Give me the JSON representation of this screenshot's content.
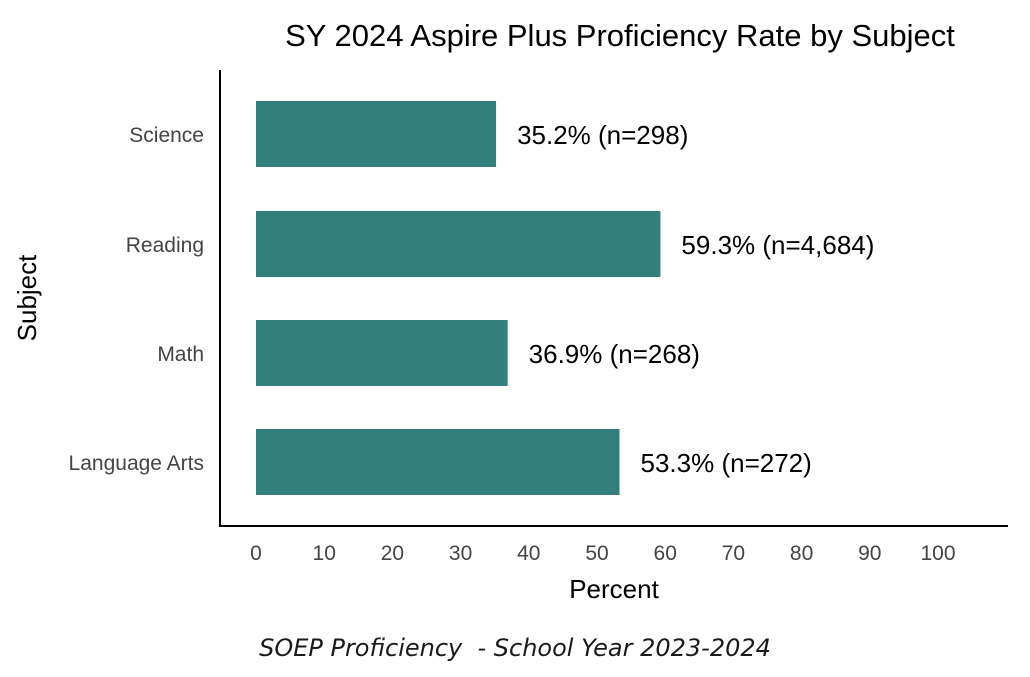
{
  "chart_data": {
    "type": "bar",
    "orientation": "horizontal",
    "title": "SY 2024 Aspire Plus Proficiency Rate by Subject",
    "xlabel": "Percent",
    "ylabel": "Subject",
    "categories": [
      "Science",
      "Reading",
      "Math",
      "Language Arts"
    ],
    "values": [
      35.2,
      59.3,
      36.9,
      53.3
    ],
    "data_labels": [
      "35.2% (n=298)",
      "59.3% (n=4,684)",
      "36.9% (n=268)",
      "53.3% (n=272)"
    ],
    "xlim": [
      0,
      100
    ],
    "x_ticks": [
      "0",
      "10",
      "20",
      "30",
      "40",
      "50",
      "60",
      "70",
      "80",
      "90",
      "100"
    ],
    "bar_color": "#337f7c",
    "grid": false
  },
  "caption": "SOEP Proficiency  - School Year 2023-2024"
}
